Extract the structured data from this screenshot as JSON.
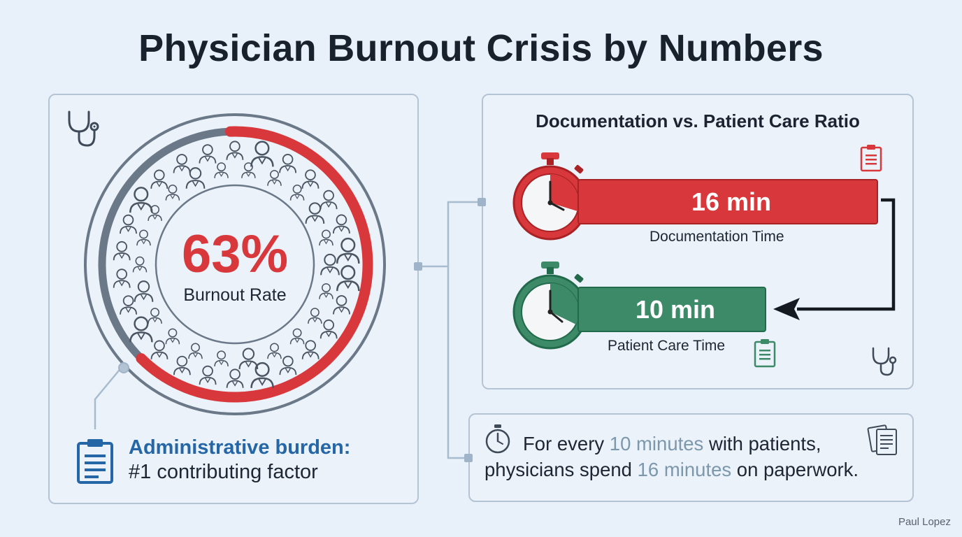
{
  "title": "Physician Burnout Crisis by Numbers",
  "burnout": {
    "percent_label": "63%",
    "percent_value": 63,
    "label": "Burnout Rate",
    "factor_title": "Administrative burden:",
    "factor_subtitle": "#1 contributing factor"
  },
  "ratio": {
    "title": "Documentation vs. Patient Care Ratio",
    "documentation": {
      "value_label": "16 min",
      "minutes": 16,
      "caption": "Documentation Time"
    },
    "patient_care": {
      "value_label": "10 min",
      "minutes": 10,
      "caption": "Patient Care Time"
    }
  },
  "note": {
    "line1_pre": "For every ",
    "line1_hl": "10 minutes",
    "line1_post": " with patients,",
    "line2_pre": "physicians spend ",
    "line2_hl": "16 minutes",
    "line2_post": " on paperwork."
  },
  "credit": "Paul Lopez",
  "colors": {
    "red": "#d8383b",
    "green": "#3c8a67",
    "blue": "#2466a6",
    "ring_gray": "#6a7888",
    "panel_border": "#b4c4d4"
  },
  "icons": [
    "stethoscope-icon",
    "clipboard-icon",
    "stopwatch-icon",
    "documents-icon",
    "physician-avatar-icon"
  ]
}
